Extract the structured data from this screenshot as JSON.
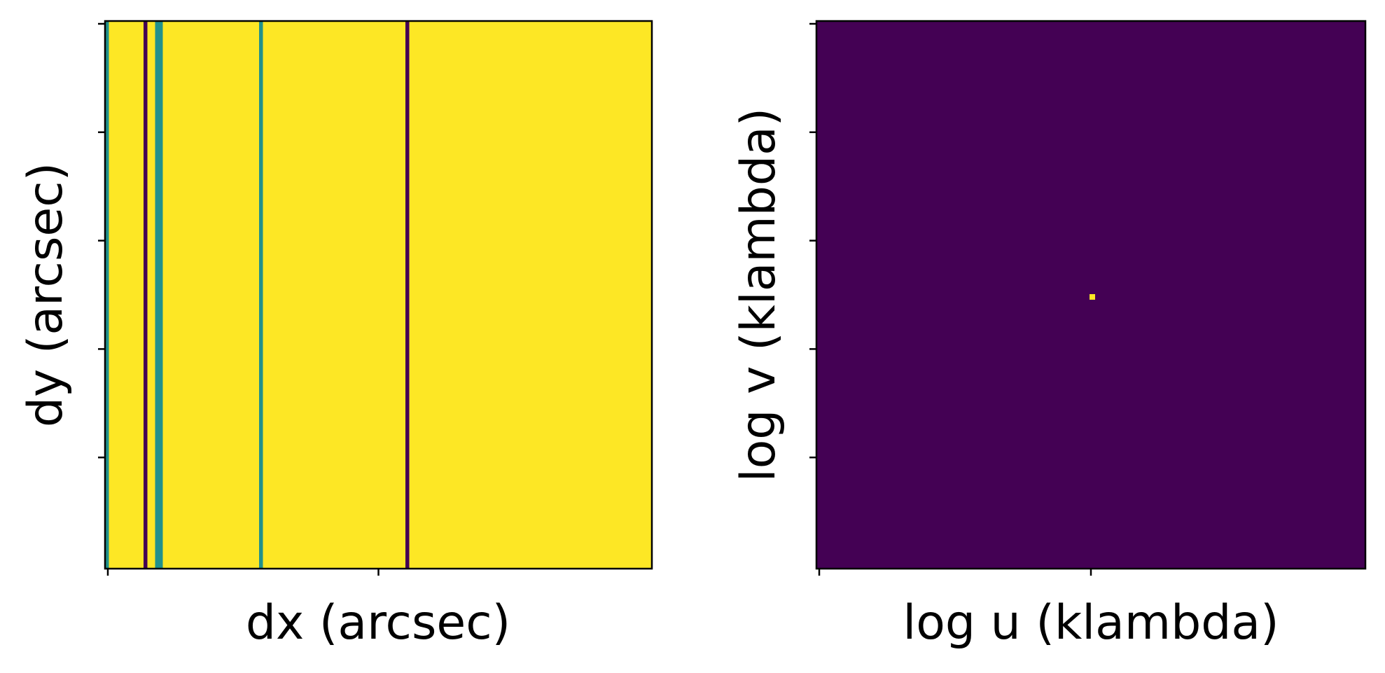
{
  "chart_data": [
    {
      "type": "heatmap",
      "title": "",
      "xlabel": "dx (arcsec)",
      "ylabel": "dy (arcsec)",
      "xticklabels": [
        "",
        ""
      ],
      "yticklabels": [
        "",
        "",
        "",
        "",
        ""
      ],
      "colormap": "viridis",
      "levels": {
        "low": "#440154",
        "mid": "#21918c",
        "high": "#fde725"
      },
      "pattern": "vertical stripes, constant along dy",
      "column_values": [
        2,
        1,
        1,
        1,
        1,
        1,
        1,
        1,
        1,
        1,
        0,
        1,
        1,
        2,
        2,
        1,
        1,
        1,
        1,
        1,
        1,
        1,
        1,
        1,
        1,
        1,
        1,
        1,
        1,
        1,
        1,
        1,
        1,
        1,
        1,
        1,
        1,
        1,
        1,
        1,
        2,
        1,
        1,
        1,
        1,
        1,
        1,
        1,
        1,
        1,
        1,
        1,
        1,
        1,
        1,
        1,
        1,
        1,
        1,
        1,
        1,
        1,
        1,
        1,
        1,
        1,
        1,
        1,
        1,
        1,
        1,
        1,
        1,
        1,
        1,
        1,
        1,
        1,
        0,
        1,
        1,
        1,
        1,
        1,
        1,
        1,
        1,
        1,
        1,
        1,
        1,
        1,
        1,
        1,
        1,
        1,
        1,
        1,
        1,
        1,
        1,
        1,
        1,
        1,
        1,
        1,
        1,
        1,
        1,
        1,
        1,
        1,
        1,
        1,
        1,
        1,
        1,
        1,
        1,
        1,
        1,
        1,
        1,
        1,
        1,
        1,
        1,
        1,
        1,
        1,
        1,
        1,
        1,
        1,
        1,
        1,
        1,
        1,
        1,
        1,
        1,
        1
      ]
    },
    {
      "type": "heatmap",
      "title": "",
      "xlabel": "log u (klambda)",
      "ylabel": "log v (klambda)",
      "xticklabels": [
        "",
        ""
      ],
      "yticklabels": [
        "",
        "",
        "",
        "",
        ""
      ],
      "colormap": "viridis",
      "levels": {
        "low": "#440154",
        "high": "#fde725"
      },
      "pattern": "uniform minimum with a single maximum pixel at the center"
    }
  ]
}
